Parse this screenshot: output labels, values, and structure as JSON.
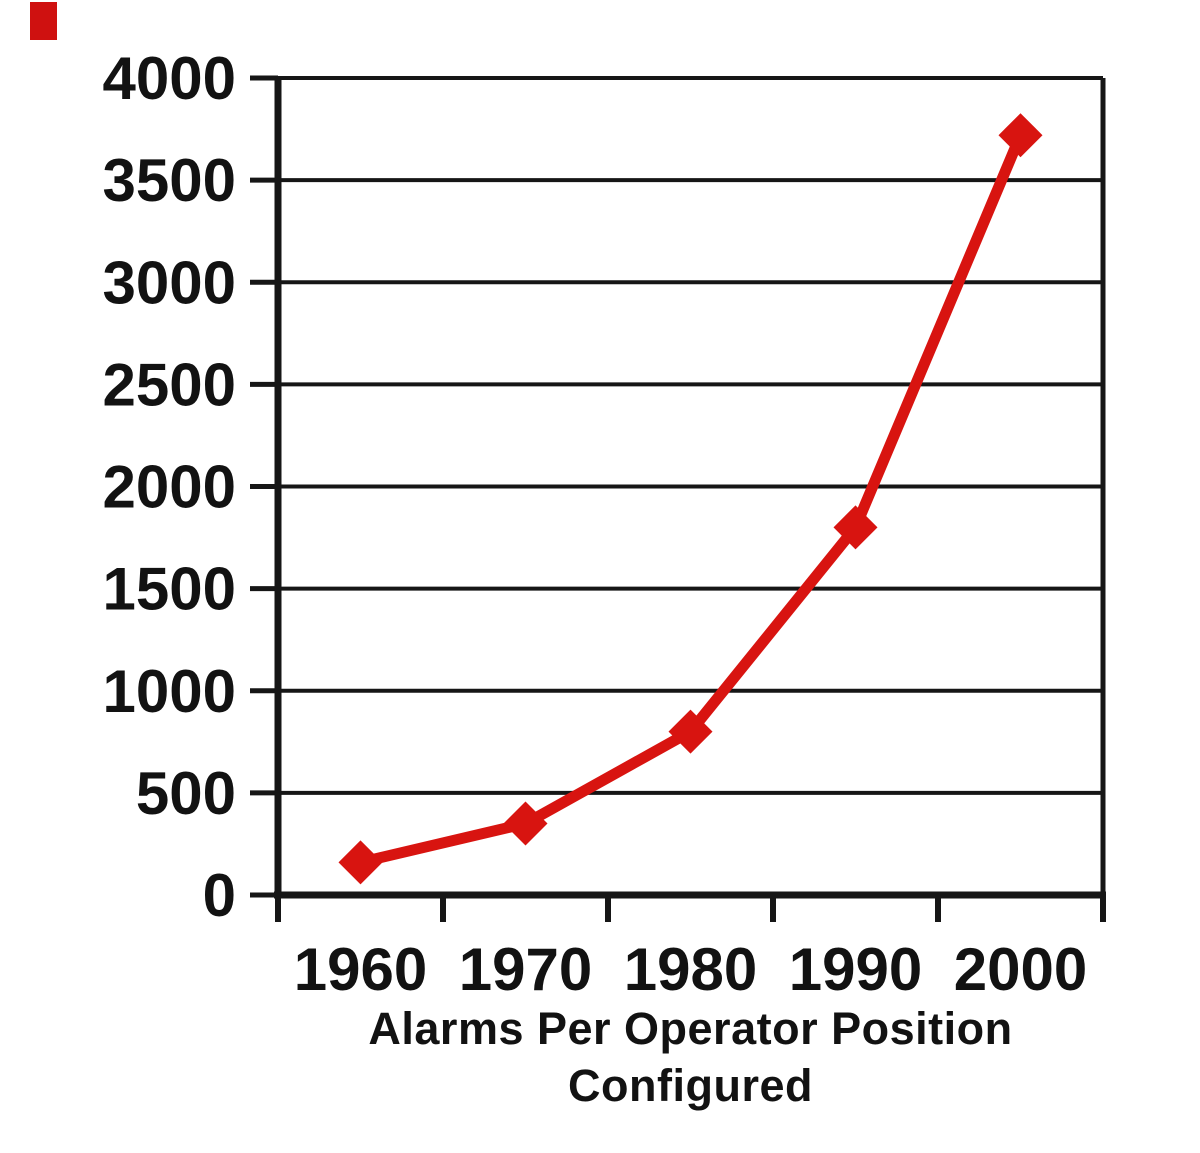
{
  "corner_marker": {
    "color": "#cf1110"
  },
  "chart_data": {
    "type": "line",
    "categories": [
      "1960",
      "1970",
      "1980",
      "1990",
      "2000"
    ],
    "series": [
      {
        "name": "Alarms Per Operator Position Configured",
        "values": [
          160,
          350,
          800,
          1800,
          3720
        ],
        "color": "#d81410",
        "marker": "diamond"
      }
    ],
    "title": "",
    "xlabel": "Alarms Per Operator Position Configured",
    "xlabel_lines": [
      "Alarms Per Operator Position",
      "Configured"
    ],
    "ylabel": "",
    "ylim": [
      0,
      4000
    ],
    "ytick_interval": 500,
    "ytick_labels": [
      "0",
      "500",
      "1000",
      "1500",
      "2000",
      "2500",
      "3000",
      "3500",
      "4000"
    ],
    "grid": "horizontal-major",
    "legend_position": "none",
    "axis_color": "#161616",
    "plot_background": "#ffffff"
  }
}
